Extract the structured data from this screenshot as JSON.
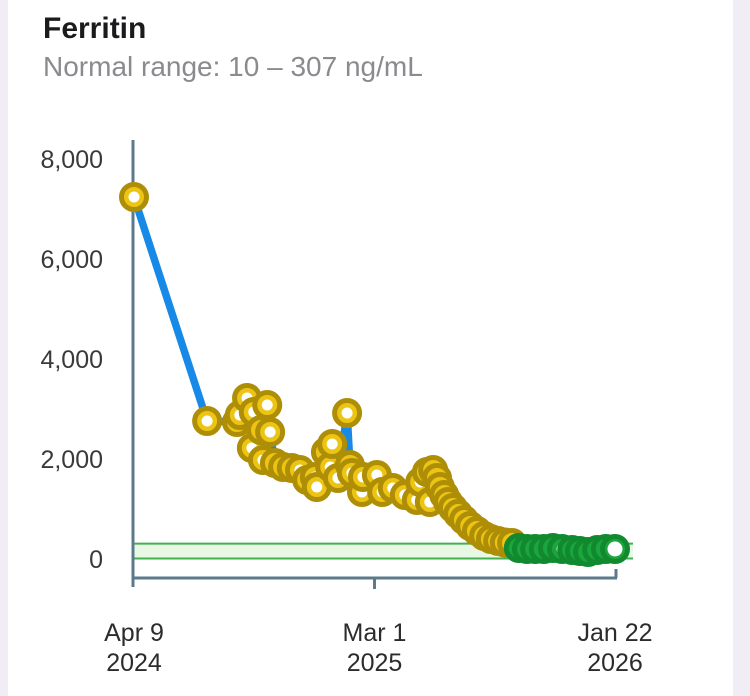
{
  "card": {
    "title": "Ferritin",
    "subtitle": "Normal range: 10 – 307 ng/mL"
  },
  "chart_data": {
    "type": "line",
    "title": "Ferritin",
    "unit": "ng/mL",
    "normal_range": {
      "min": 10,
      "max": 307
    },
    "y_axis": {
      "range": [
        0,
        8400
      ],
      "ticks": [
        0,
        2000,
        4000,
        6000,
        8000
      ],
      "tick_labels": [
        "0",
        "2,000",
        "4,000",
        "6,000",
        "8,000"
      ]
    },
    "x_axis": {
      "start_label": [
        "Apr 9",
        "2024"
      ],
      "end_label": [
        "Jan 22",
        "2026"
      ],
      "ticks": [
        {
          "pos": 0.0,
          "line1": "Apr 9",
          "line2": "2024"
        },
        {
          "pos": 0.5,
          "line1": "Mar 1",
          "line2": "2025"
        },
        {
          "pos": 1.0,
          "line1": "Jan 22",
          "line2": "2026"
        }
      ]
    },
    "legend": "none",
    "grid": "none",
    "series": [
      {
        "name": "Ferritin (ng/mL)",
        "points": [
          {
            "t": 0.0,
            "v": 7240
          },
          {
            "t": 0.152,
            "v": 2760
          },
          {
            "t": 0.214,
            "v": 2740
          },
          {
            "t": 0.22,
            "v": 2880
          },
          {
            "t": 0.235,
            "v": 3220
          },
          {
            "t": 0.245,
            "v": 2220
          },
          {
            "t": 0.249,
            "v": 2940
          },
          {
            "t": 0.264,
            "v": 2580
          },
          {
            "t": 0.268,
            "v": 1980
          },
          {
            "t": 0.277,
            "v": 3080
          },
          {
            "t": 0.283,
            "v": 2540
          },
          {
            "t": 0.293,
            "v": 1920
          },
          {
            "t": 0.31,
            "v": 1840
          },
          {
            "t": 0.328,
            "v": 1820
          },
          {
            "t": 0.345,
            "v": 1780
          },
          {
            "t": 0.36,
            "v": 1580
          },
          {
            "t": 0.376,
            "v": 1640
          },
          {
            "t": 0.38,
            "v": 1440
          },
          {
            "t": 0.399,
            "v": 2140
          },
          {
            "t": 0.408,
            "v": 1840
          },
          {
            "t": 0.412,
            "v": 2300
          },
          {
            "t": 0.424,
            "v": 1620
          },
          {
            "t": 0.443,
            "v": 2920
          },
          {
            "t": 0.449,
            "v": 1880
          },
          {
            "t": 0.453,
            "v": 1720
          },
          {
            "t": 0.474,
            "v": 1340
          },
          {
            "t": 0.476,
            "v": 1640
          },
          {
            "t": 0.505,
            "v": 1680
          },
          {
            "t": 0.516,
            "v": 1340
          },
          {
            "t": 0.538,
            "v": 1420
          },
          {
            "t": 0.563,
            "v": 1280
          },
          {
            "t": 0.588,
            "v": 1180
          },
          {
            "t": 0.595,
            "v": 1540
          },
          {
            "t": 0.609,
            "v": 1740
          },
          {
            "t": 0.615,
            "v": 1140
          },
          {
            "t": 0.622,
            "v": 1780
          },
          {
            "t": 0.63,
            "v": 1620
          },
          {
            "t": 0.636,
            "v": 1440
          },
          {
            "t": 0.645,
            "v": 1280
          },
          {
            "t": 0.653,
            "v": 1140
          },
          {
            "t": 0.663,
            "v": 1020
          },
          {
            "t": 0.674,
            "v": 900
          },
          {
            "t": 0.686,
            "v": 780
          },
          {
            "t": 0.699,
            "v": 660
          },
          {
            "t": 0.713,
            "v": 560
          },
          {
            "t": 0.728,
            "v": 460
          },
          {
            "t": 0.742,
            "v": 400
          },
          {
            "t": 0.757,
            "v": 360
          },
          {
            "t": 0.771,
            "v": 330
          },
          {
            "t": 0.786,
            "v": 320
          },
          {
            "t": 0.8,
            "v": 220
          },
          {
            "t": 0.817,
            "v": 200
          },
          {
            "t": 0.834,
            "v": 200
          },
          {
            "t": 0.852,
            "v": 200
          },
          {
            "t": 0.871,
            "v": 220
          },
          {
            "t": 0.89,
            "v": 200
          },
          {
            "t": 0.911,
            "v": 180
          },
          {
            "t": 0.927,
            "v": 160
          },
          {
            "t": 0.944,
            "v": 140
          },
          {
            "t": 0.963,
            "v": 180
          },
          {
            "t": 0.981,
            "v": 200
          },
          {
            "t": 1.0,
            "v": 200
          }
        ]
      }
    ],
    "colors": {
      "line": "#1789e6",
      "out_of_range_fill": "#ecc414",
      "out_of_range_ring": "#ae8e06",
      "in_range_fill": "#1ca53c",
      "in_range_ring": "#118a2f",
      "band_fill": "#e9f7e5",
      "band_border": "#43b14f",
      "axis": "#5b7b8d",
      "marker_hole": "#ffffff"
    }
  }
}
